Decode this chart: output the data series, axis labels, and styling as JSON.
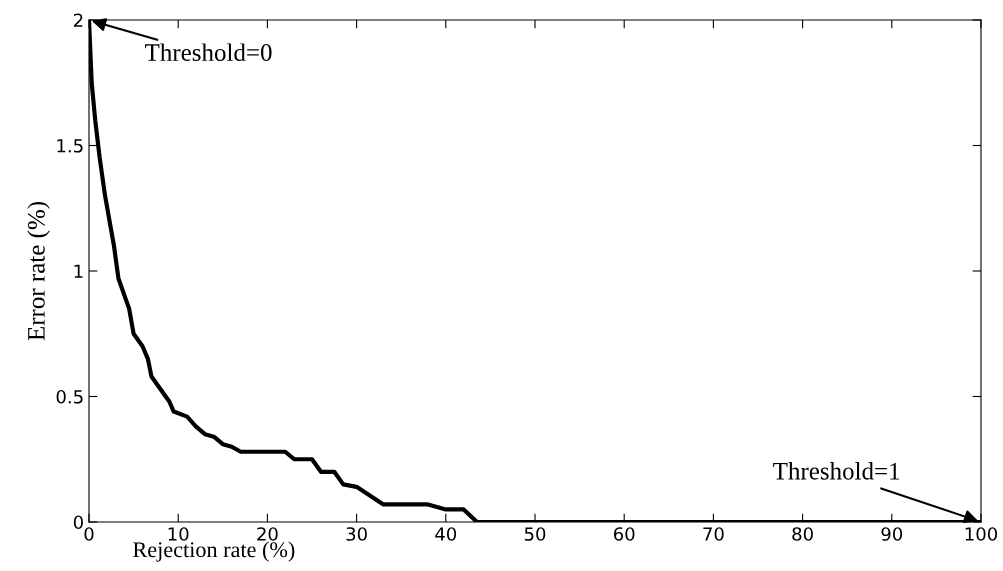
{
  "chart_data": {
    "type": "line",
    "xlabel": "Rejection rate (%)",
    "ylabel": "Error rate (%)",
    "x": [
      0,
      0.3,
      0.7,
      1.2,
      1.8,
      2.3,
      2.8,
      3.3,
      4,
      4.5,
      5,
      6,
      6.6,
      7,
      8,
      9,
      9.5,
      11,
      12,
      13,
      14,
      15,
      16,
      17,
      20,
      22,
      23,
      25,
      26,
      27.5,
      28.5,
      30,
      33,
      38,
      40,
      42,
      43.5,
      100
    ],
    "series": [
      {
        "color": "#000000",
        "values": [
          2.0,
          1.75,
          1.6,
          1.45,
          1.3,
          1.2,
          1.1,
          0.97,
          0.9,
          0.85,
          0.75,
          0.7,
          0.65,
          0.58,
          0.53,
          0.48,
          0.44,
          0.42,
          0.38,
          0.35,
          0.34,
          0.31,
          0.3,
          0.28,
          0.28,
          0.28,
          0.25,
          0.25,
          0.2,
          0.2,
          0.15,
          0.14,
          0.07,
          0.07,
          0.05,
          0.05,
          0.0,
          0.0
        ]
      }
    ],
    "xlim": [
      0,
      100
    ],
    "xticks": [
      0,
      10,
      20,
      30,
      40,
      50,
      60,
      70,
      80,
      90,
      100
    ],
    "ylim": [
      0,
      2
    ],
    "yticks": [
      0,
      0.5,
      1,
      1.5,
      2
    ],
    "annotations": [
      {
        "text": "Threshold=0",
        "x": 0,
        "y": 2
      },
      {
        "text": "Threshold=1",
        "x": 100,
        "y": 0
      }
    ],
    "grid": false,
    "legend": false,
    "marker": "none",
    "line_style": "solid"
  }
}
